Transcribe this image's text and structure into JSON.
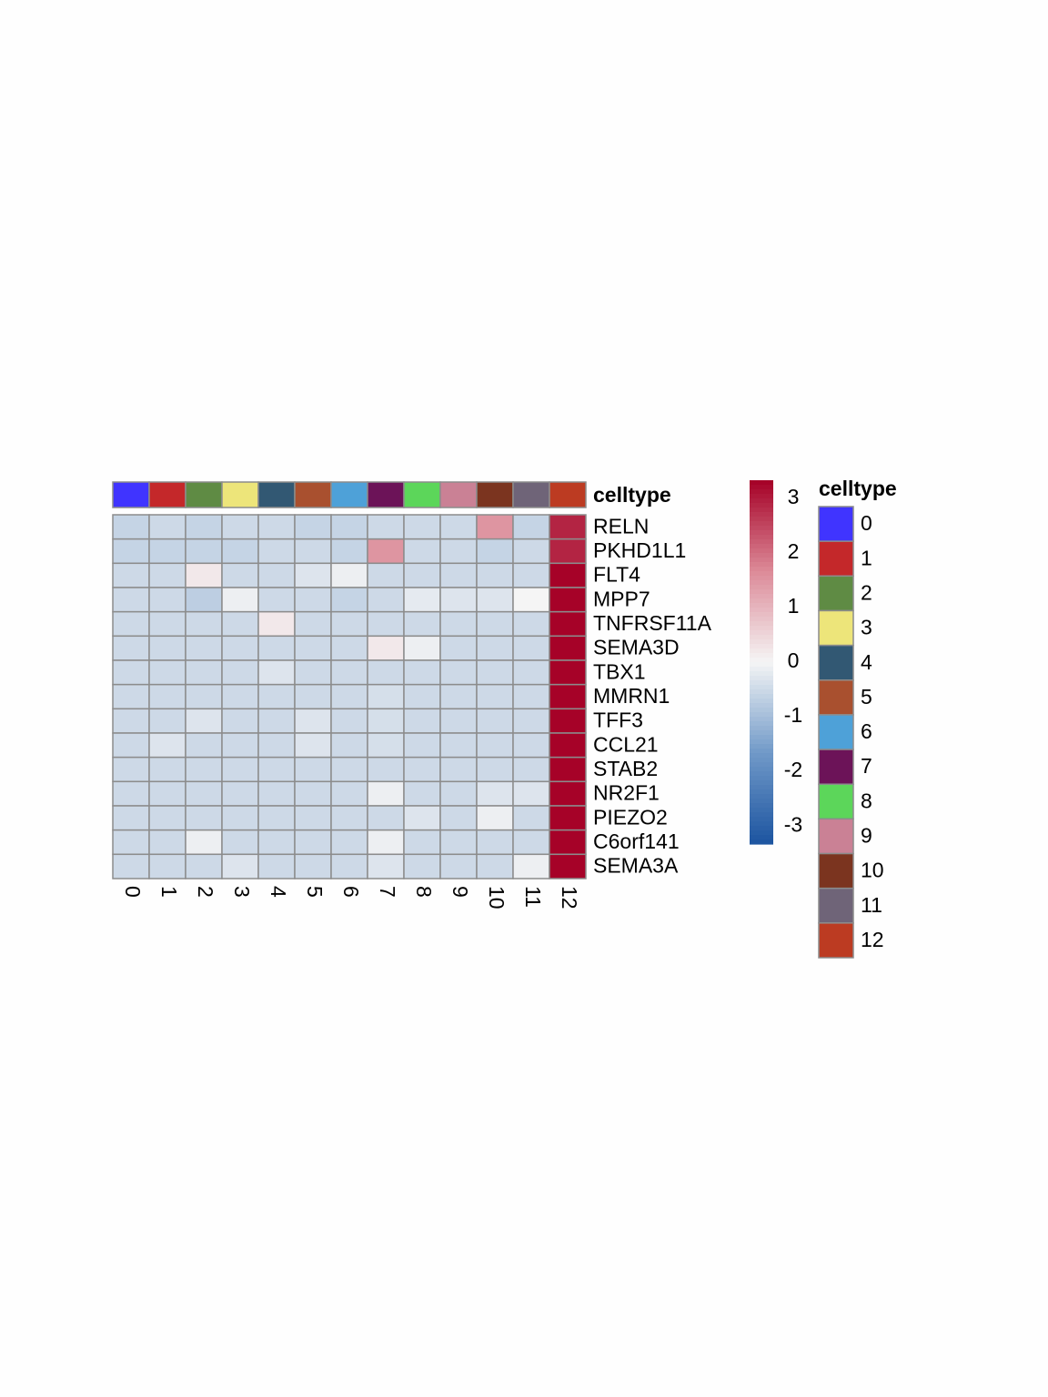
{
  "chart_data": {
    "type": "heatmap",
    "annotation_title": "celltype",
    "columns": [
      "0",
      "1",
      "2",
      "3",
      "4",
      "5",
      "6",
      "7",
      "8",
      "9",
      "10",
      "11",
      "12"
    ],
    "annotation_colors": [
      "#4034ff",
      "#c4282a",
      "#5f8b44",
      "#ede57a",
      "#325873",
      "#a9502f",
      "#4ea1d8",
      "#6c1358",
      "#5cd65a",
      "#ca8195",
      "#7b341f",
      "#6f6478",
      "#bc3b22"
    ],
    "rows": [
      "RELN",
      "PKHD1L1",
      "FLT4",
      "MPP7",
      "TNFRSF11A",
      "SEMA3D",
      "TBX1",
      "MMRN1",
      "TFF3",
      "CCL21",
      "STAB2",
      "NR2F1",
      "PIEZO2",
      "C6orf141",
      "SEMA3A"
    ],
    "values": [
      [
        -0.6,
        -0.5,
        -0.6,
        -0.5,
        -0.5,
        -0.6,
        -0.6,
        -0.5,
        -0.5,
        -0.5,
        1.5,
        -0.6,
        2.9
      ],
      [
        -0.6,
        -0.6,
        -0.6,
        -0.6,
        -0.5,
        -0.5,
        -0.6,
        1.5,
        -0.5,
        -0.5,
        -0.6,
        -0.5,
        2.9
      ],
      [
        -0.5,
        -0.5,
        0.2,
        -0.5,
        -0.5,
        -0.3,
        -0.1,
        -0.5,
        -0.5,
        -0.5,
        -0.5,
        -0.5,
        3.3
      ],
      [
        -0.5,
        -0.5,
        -0.7,
        -0.1,
        -0.5,
        -0.5,
        -0.6,
        -0.5,
        -0.2,
        -0.3,
        -0.3,
        0,
        3.3
      ],
      [
        -0.5,
        -0.5,
        -0.5,
        -0.5,
        0.2,
        -0.5,
        -0.5,
        -0.5,
        -0.5,
        -0.5,
        -0.5,
        -0.5,
        3.3
      ],
      [
        -0.5,
        -0.5,
        -0.5,
        -0.5,
        -0.5,
        -0.5,
        -0.5,
        0.2,
        -0.1,
        -0.5,
        -0.5,
        -0.5,
        3.3
      ],
      [
        -0.5,
        -0.5,
        -0.5,
        -0.5,
        -0.3,
        -0.5,
        -0.5,
        -0.5,
        -0.5,
        -0.5,
        -0.5,
        -0.5,
        3.3
      ],
      [
        -0.5,
        -0.5,
        -0.5,
        -0.5,
        -0.5,
        -0.5,
        -0.5,
        -0.4,
        -0.5,
        -0.5,
        -0.5,
        -0.5,
        3.3
      ],
      [
        -0.5,
        -0.5,
        -0.3,
        -0.5,
        -0.5,
        -0.3,
        -0.5,
        -0.4,
        -0.5,
        -0.5,
        -0.5,
        -0.5,
        3.3
      ],
      [
        -0.5,
        -0.3,
        -0.5,
        -0.5,
        -0.5,
        -0.3,
        -0.5,
        -0.4,
        -0.5,
        -0.5,
        -0.5,
        -0.5,
        3.3
      ],
      [
        -0.5,
        -0.5,
        -0.5,
        -0.5,
        -0.5,
        -0.5,
        -0.5,
        -0.5,
        -0.5,
        -0.5,
        -0.5,
        -0.5,
        3.3
      ],
      [
        -0.5,
        -0.5,
        -0.5,
        -0.5,
        -0.5,
        -0.5,
        -0.5,
        -0.1,
        -0.5,
        -0.5,
        -0.3,
        -0.3,
        3.3
      ],
      [
        -0.5,
        -0.5,
        -0.5,
        -0.5,
        -0.5,
        -0.5,
        -0.5,
        -0.5,
        -0.3,
        -0.5,
        -0.1,
        -0.5,
        3.3
      ],
      [
        -0.5,
        -0.5,
        -0.1,
        -0.5,
        -0.5,
        -0.5,
        -0.5,
        -0.1,
        -0.5,
        -0.5,
        -0.5,
        -0.5,
        3.3
      ],
      [
        -0.5,
        -0.5,
        -0.5,
        -0.3,
        -0.5,
        -0.5,
        -0.5,
        -0.3,
        -0.5,
        -0.5,
        -0.5,
        -0.1,
        3.3
      ]
    ],
    "colorscale": [
      "#1c54a0",
      "#7099c8",
      "#f5f5f5",
      "#dc8a98",
      "#a50026"
    ],
    "zlim": [
      -3.33,
      3.33
    ],
    "zticks": [
      -3,
      -2,
      -1,
      0,
      1,
      2,
      3
    ]
  }
}
